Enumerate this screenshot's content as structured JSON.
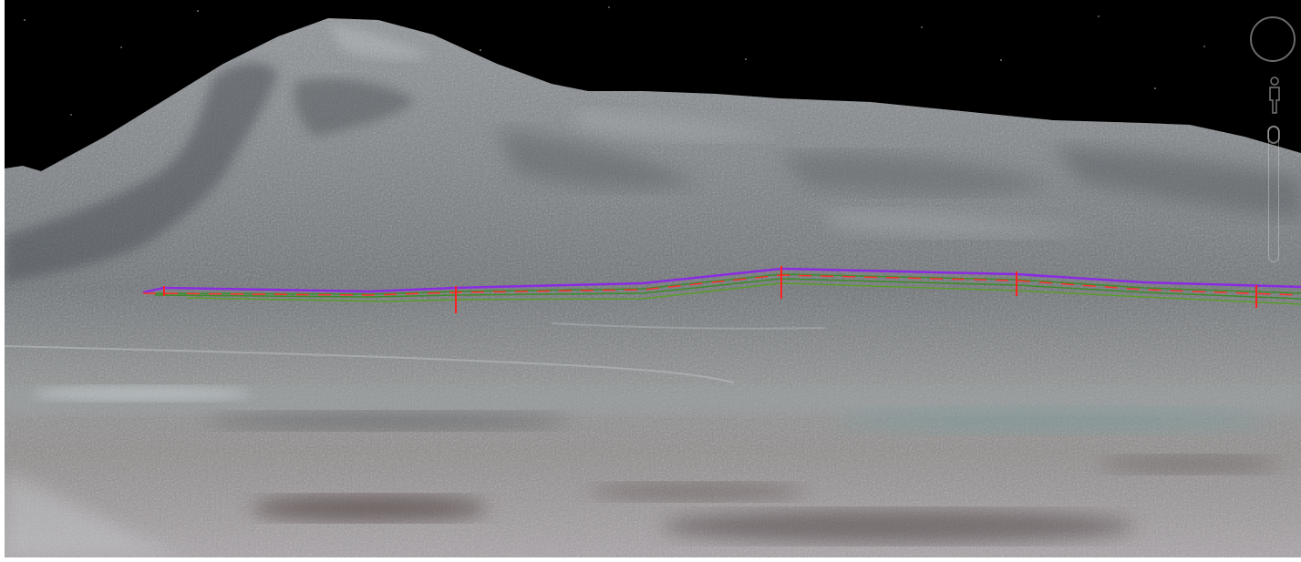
{
  "view": {
    "mode": "3d-terrain",
    "sky_color": "#000000",
    "overlay_colors": {
      "top_line": "#8a2be2",
      "guide_lines": "#3c8c28",
      "posts": "#ff2020"
    },
    "overlay_post_count": 5
  },
  "navigation_controls": {
    "compass_icon": "compass-ring",
    "pegman_icon": "street-view-person",
    "zoom_icon": "zoom-slider"
  }
}
